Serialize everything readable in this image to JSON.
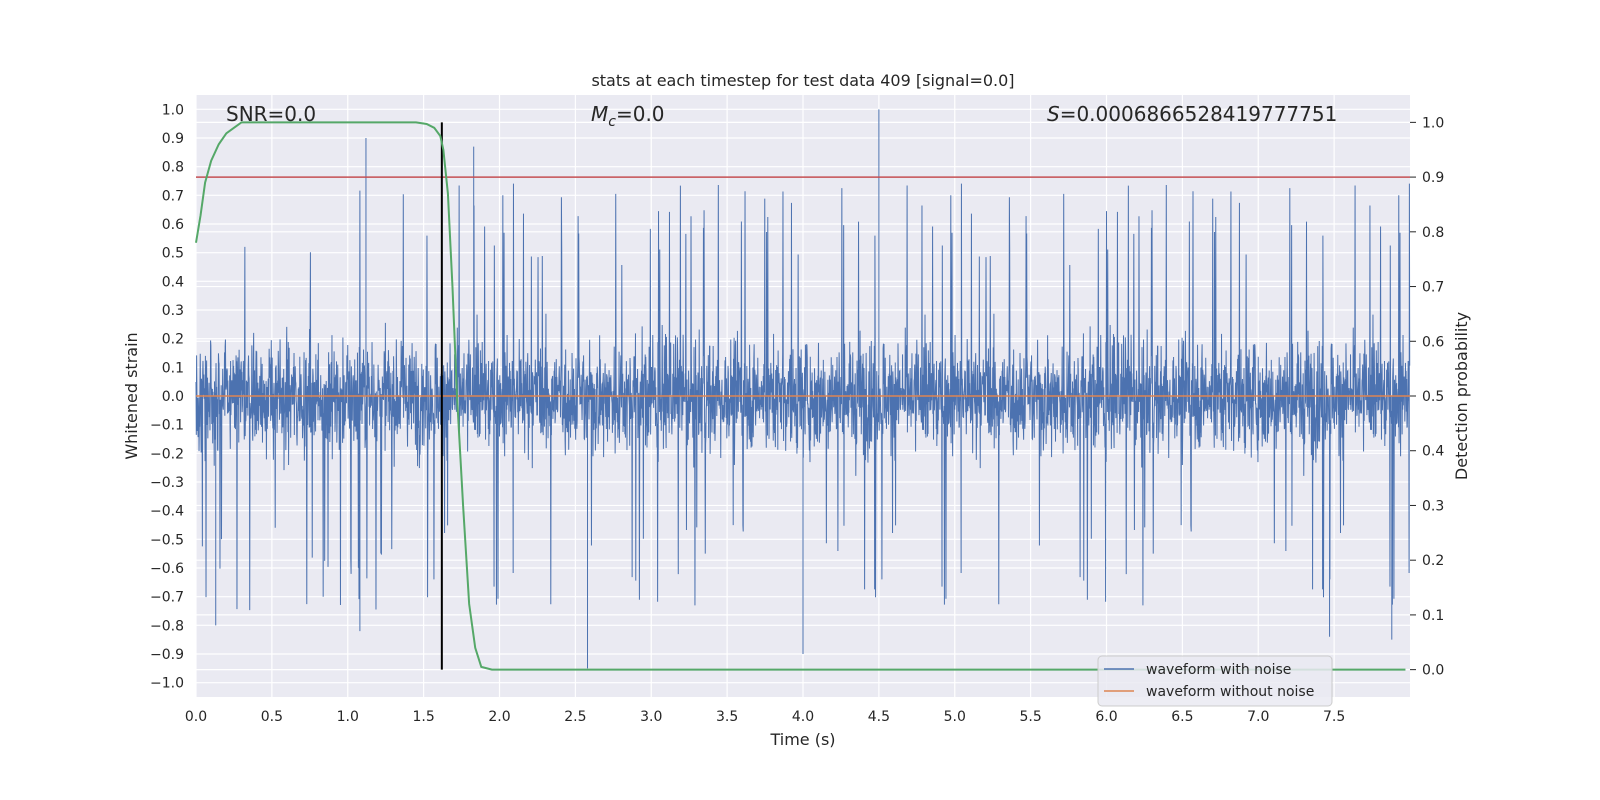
{
  "chart_data": {
    "type": "line",
    "title": "stats at each timestep for test data 409 [signal=0.0]",
    "xlabel": "Time (s)",
    "ylabel_left": "Whitened strain",
    "ylabel_right": "Detection probability",
    "xlim": [
      0.0,
      8.0
    ],
    "ylim_left": [
      -1.05,
      1.05
    ],
    "ylim_right": [
      -0.05,
      1.05
    ],
    "x_ticks": [
      "0.0",
      "0.5",
      "1.0",
      "1.5",
      "2.0",
      "2.5",
      "3.0",
      "3.5",
      "4.0",
      "4.5",
      "5.0",
      "5.5",
      "6.0",
      "6.5",
      "7.0",
      "7.5"
    ],
    "y_left_ticks": [
      "1.0",
      "0.9",
      "0.8",
      "0.7",
      "0.6",
      "0.5",
      "0.4",
      "0.3",
      "0.2",
      "0.1",
      "0.0",
      "-0.1",
      "-0.2",
      "-0.3",
      "-0.4",
      "-0.5",
      "-0.6",
      "-0.7",
      "-0.8",
      "-0.9",
      "-1.0"
    ],
    "y_right_ticks": [
      "1.0",
      "0.9",
      "0.8",
      "0.7",
      "0.6",
      "0.5",
      "0.4",
      "0.3",
      "0.2",
      "0.1",
      "0.0"
    ],
    "grid": true,
    "legend_position": "bottom-right",
    "annotations": {
      "snr": "SNR=0.0",
      "mc_symbol": "M",
      "mc_sub": "c",
      "mc_value": "=0.0",
      "s_symbol": "S",
      "s_value": "=0.0006866528419777751"
    },
    "series": [
      {
        "name": "waveform with noise",
        "axis": "left",
        "color": "#4c72b0",
        "style": "noise",
        "typical_amplitude": 0.4,
        "peak_amplitude": 1.0,
        "notable_peaks": [
          {
            "x": 4.5,
            "y": 1.0
          },
          {
            "x": 1.12,
            "y": 0.9
          },
          {
            "x": 1.83,
            "y": 0.87
          },
          {
            "x": 2.58,
            "y": -0.95
          },
          {
            "x": 4.0,
            "y": -0.9
          },
          {
            "x": 7.88,
            "y": -0.85
          },
          {
            "x": 7.47,
            "y": -0.84
          },
          {
            "x": 1.08,
            "y": -0.82
          },
          {
            "x": 0.13,
            "y": -0.8
          }
        ]
      },
      {
        "name": "waveform without noise",
        "axis": "left",
        "color": "#dd8452",
        "x": [
          0.0,
          8.0
        ],
        "y": [
          0.0,
          0.0
        ]
      },
      {
        "name": "detection probability",
        "axis": "right",
        "color": "#55a868",
        "x": [
          0.0,
          0.03,
          0.06,
          0.1,
          0.15,
          0.2,
          0.25,
          0.3,
          0.5,
          1.0,
          1.45,
          1.52,
          1.57,
          1.61,
          1.63,
          1.66,
          1.69,
          1.72,
          1.76,
          1.8,
          1.84,
          1.88,
          1.95,
          2.5,
          8.0
        ],
        "y": [
          0.78,
          0.83,
          0.89,
          0.93,
          0.96,
          0.98,
          0.99,
          1.0,
          1.0,
          1.0,
          1.0,
          0.997,
          0.99,
          0.975,
          0.95,
          0.87,
          0.7,
          0.5,
          0.3,
          0.12,
          0.04,
          0.005,
          0.0,
          0.0,
          0.0
        ]
      }
    ],
    "threshold": {
      "axis": "right",
      "y": 0.9,
      "color": "#c44e52"
    },
    "vertical_marker": {
      "x": 1.62,
      "y_from": 0.0,
      "y_to": 1.0,
      "axis": "right",
      "color": "#000000"
    },
    "colors": {
      "plot_background": "#eaeaf2",
      "grid": "#ffffff",
      "text": "#262626"
    }
  }
}
